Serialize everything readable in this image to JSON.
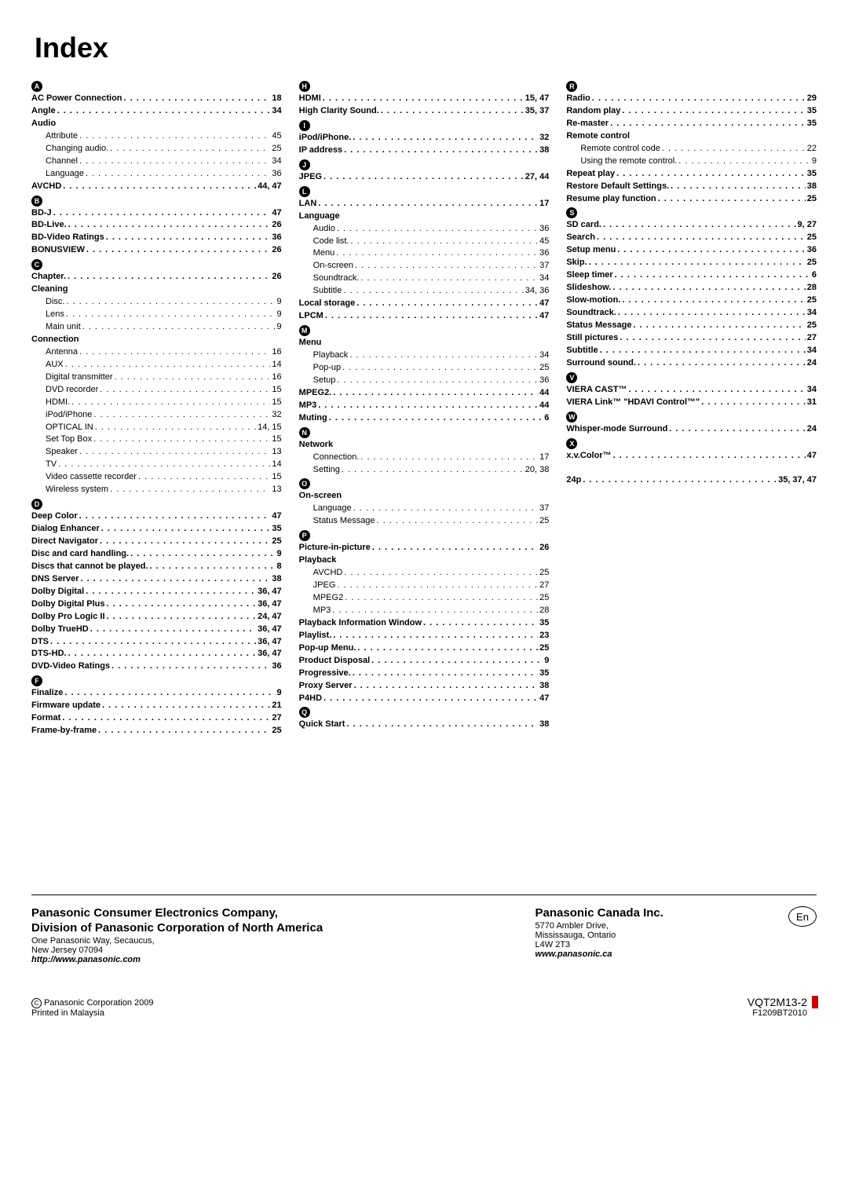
{
  "title": "Index",
  "columns": [
    [
      {
        "type": "letter",
        "v": "A"
      },
      {
        "type": "be",
        "l": "AC Power Connection",
        "p": "18"
      },
      {
        "type": "be",
        "l": "Angle",
        "p": "34"
      },
      {
        "type": "bh",
        "l": "Audio"
      },
      {
        "type": "se",
        "l": "Attribute",
        "p": "45"
      },
      {
        "type": "se",
        "l": "Changing audio.",
        "p": "25"
      },
      {
        "type": "se",
        "l": "Channel",
        "p": "34"
      },
      {
        "type": "se",
        "l": "Language",
        "p": "36"
      },
      {
        "type": "be",
        "l": "AVCHD",
        "p": "44, 47"
      },
      {
        "type": "letter",
        "v": "B"
      },
      {
        "type": "be",
        "l": "BD-J",
        "p": "47"
      },
      {
        "type": "be",
        "l": "BD-Live.",
        "p": "26"
      },
      {
        "type": "be",
        "l": "BD-Video Ratings",
        "p": "36"
      },
      {
        "type": "be",
        "l": "BONUSVIEW",
        "p": "26"
      },
      {
        "type": "letter",
        "v": "C"
      },
      {
        "type": "be",
        "l": "Chapter.",
        "p": "26"
      },
      {
        "type": "bh",
        "l": "Cleaning"
      },
      {
        "type": "se",
        "l": "Disc.",
        "p": "9"
      },
      {
        "type": "se",
        "l": "Lens",
        "p": "9"
      },
      {
        "type": "se",
        "l": "Main unit",
        "p": "9"
      },
      {
        "type": "bh",
        "l": "Connection"
      },
      {
        "type": "se",
        "l": "Antenna",
        "p": "16"
      },
      {
        "type": "se",
        "l": "AUX",
        "p": "14"
      },
      {
        "type": "se",
        "l": "Digital transmitter",
        "p": "16"
      },
      {
        "type": "se",
        "l": "DVD recorder",
        "p": "15"
      },
      {
        "type": "se",
        "l": "HDMI.",
        "p": "15"
      },
      {
        "type": "se",
        "l": "iPod/iPhone",
        "p": "32"
      },
      {
        "type": "se",
        "l": "OPTICAL IN",
        "p": "14, 15"
      },
      {
        "type": "se",
        "l": "Set Top Box",
        "p": "15"
      },
      {
        "type": "se",
        "l": "Speaker",
        "p": "13"
      },
      {
        "type": "se",
        "l": "TV",
        "p": "14"
      },
      {
        "type": "se",
        "l": "Video cassette recorder",
        "p": "15"
      },
      {
        "type": "se",
        "l": "Wireless system",
        "p": "13"
      },
      {
        "type": "letter",
        "v": "D"
      },
      {
        "type": "be",
        "l": "Deep Color",
        "p": "47"
      },
      {
        "type": "be",
        "l": "Dialog Enhancer",
        "p": "35"
      },
      {
        "type": "be",
        "l": "Direct Navigator",
        "p": "25"
      },
      {
        "type": "be",
        "l": "Disc and card handling.",
        "p": "9"
      },
      {
        "type": "be",
        "l": "Discs that cannot be played.",
        "p": "8"
      },
      {
        "type": "be",
        "l": "DNS Server",
        "p": "38"
      },
      {
        "type": "be",
        "l": "Dolby Digital",
        "p": "36, 47"
      },
      {
        "type": "be",
        "l": "Dolby Digital Plus",
        "p": "36, 47"
      },
      {
        "type": "be",
        "l": "Dolby Pro Logic II",
        "p": "24, 47"
      },
      {
        "type": "be",
        "l": "Dolby TrueHD",
        "p": "36, 47"
      },
      {
        "type": "be",
        "l": "DTS",
        "p": "36, 47"
      },
      {
        "type": "be",
        "l": "DTS-HD.",
        "p": "36, 47"
      },
      {
        "type": "be",
        "l": "DVD-Video Ratings",
        "p": "36"
      },
      {
        "type": "letter",
        "v": "F"
      },
      {
        "type": "be",
        "l": "Finalize",
        "p": "9"
      },
      {
        "type": "be",
        "l": "Firmware update",
        "p": "21"
      },
      {
        "type": "be",
        "l": "Format",
        "p": "27"
      },
      {
        "type": "be",
        "l": "Frame-by-frame",
        "p": "25"
      }
    ],
    [
      {
        "type": "letter",
        "v": "H"
      },
      {
        "type": "be",
        "l": "HDMI",
        "p": "15, 47"
      },
      {
        "type": "be",
        "l": "High Clarity Sound.",
        "p": "35, 37"
      },
      {
        "type": "letter",
        "v": "I"
      },
      {
        "type": "be",
        "l": "iPod/iPhone.",
        "p": "32"
      },
      {
        "type": "be",
        "l": "IP address",
        "p": "38"
      },
      {
        "type": "letter",
        "v": "J"
      },
      {
        "type": "be",
        "l": "JPEG",
        "p": "27, 44"
      },
      {
        "type": "letter",
        "v": "L"
      },
      {
        "type": "be",
        "l": "LAN",
        "p": "17"
      },
      {
        "type": "bh",
        "l": "Language"
      },
      {
        "type": "se",
        "l": "Audio",
        "p": "36"
      },
      {
        "type": "se",
        "l": "Code list.",
        "p": "45"
      },
      {
        "type": "se",
        "l": "Menu",
        "p": "36"
      },
      {
        "type": "se",
        "l": "On-screen",
        "p": "37"
      },
      {
        "type": "se",
        "l": "Soundtrack.",
        "p": "34"
      },
      {
        "type": "se",
        "l": "Subtitle",
        "p": "34, 36"
      },
      {
        "type": "be",
        "l": "Local storage",
        "p": "47"
      },
      {
        "type": "be",
        "l": "LPCM",
        "p": "47"
      },
      {
        "type": "letter",
        "v": "M"
      },
      {
        "type": "bh",
        "l": "Menu"
      },
      {
        "type": "se",
        "l": "Playback",
        "p": "34"
      },
      {
        "type": "se",
        "l": "Pop-up",
        "p": "25"
      },
      {
        "type": "se",
        "l": "Setup",
        "p": "36"
      },
      {
        "type": "be",
        "l": "MPEG2.",
        "p": "44"
      },
      {
        "type": "be",
        "l": "MP3",
        "p": "44"
      },
      {
        "type": "be",
        "l": "Muting",
        "p": "6"
      },
      {
        "type": "letter",
        "v": "N"
      },
      {
        "type": "bh",
        "l": "Network"
      },
      {
        "type": "se",
        "l": "Connection.",
        "p": "17"
      },
      {
        "type": "se",
        "l": "Setting",
        "p": "20, 38"
      },
      {
        "type": "letter",
        "v": "O"
      },
      {
        "type": "bh",
        "l": "On-screen"
      },
      {
        "type": "se",
        "l": "Language",
        "p": "37"
      },
      {
        "type": "se",
        "l": "Status Message",
        "p": "25"
      },
      {
        "type": "letter",
        "v": "P"
      },
      {
        "type": "be",
        "l": "Picture-in-picture",
        "p": "26"
      },
      {
        "type": "bh",
        "l": "Playback"
      },
      {
        "type": "se",
        "l": "AVCHD",
        "p": "25"
      },
      {
        "type": "se",
        "l": "JPEG",
        "p": "27"
      },
      {
        "type": "se",
        "l": "MPEG2",
        "p": "25"
      },
      {
        "type": "se",
        "l": "MP3",
        "p": "28"
      },
      {
        "type": "be",
        "l": "Playback Information Window",
        "p": "35"
      },
      {
        "type": "be",
        "l": "Playlist.",
        "p": "23"
      },
      {
        "type": "be",
        "l": "Pop-up Menu.",
        "p": "25"
      },
      {
        "type": "be",
        "l": "Product Disposal",
        "p": "9"
      },
      {
        "type": "be",
        "l": "Progressive.",
        "p": "35"
      },
      {
        "type": "be",
        "l": "Proxy Server",
        "p": "38"
      },
      {
        "type": "be",
        "l": "P4HD",
        "p": "47"
      },
      {
        "type": "letter",
        "v": "Q"
      },
      {
        "type": "be",
        "l": "Quick Start",
        "p": "38"
      }
    ],
    [
      {
        "type": "letter",
        "v": "R"
      },
      {
        "type": "be",
        "l": "Radio",
        "p": "29"
      },
      {
        "type": "be",
        "l": "Random play",
        "p": "35"
      },
      {
        "type": "be",
        "l": "Re-master",
        "p": "35"
      },
      {
        "type": "bh",
        "l": "Remote control"
      },
      {
        "type": "se",
        "l": "Remote control code",
        "p": "22"
      },
      {
        "type": "se",
        "l": "Using the remote control.",
        "p": "9"
      },
      {
        "type": "be",
        "l": "Repeat play",
        "p": "35"
      },
      {
        "type": "be",
        "l": "Restore Default Settings.",
        "p": "38"
      },
      {
        "type": "be",
        "l": "Resume play function",
        "p": "25"
      },
      {
        "type": "letter",
        "v": "S"
      },
      {
        "type": "be",
        "l": "SD card.",
        "p": "9, 27"
      },
      {
        "type": "be",
        "l": "Search",
        "p": "25"
      },
      {
        "type": "be",
        "l": "Setup menu",
        "p": "36"
      },
      {
        "type": "be",
        "l": "Skip.",
        "p": "25"
      },
      {
        "type": "be",
        "l": "Sleep timer",
        "p": "6"
      },
      {
        "type": "be",
        "l": "Slideshow.",
        "p": "28"
      },
      {
        "type": "be",
        "l": "Slow-motion.",
        "p": "25"
      },
      {
        "type": "be",
        "l": "Soundtrack.",
        "p": "34"
      },
      {
        "type": "be",
        "l": "Status Message",
        "p": "25"
      },
      {
        "type": "be",
        "l": "Still pictures",
        "p": "27"
      },
      {
        "type": "be",
        "l": "Subtitle",
        "p": "34"
      },
      {
        "type": "be",
        "l": "Surround sound.",
        "p": "24"
      },
      {
        "type": "letter",
        "v": "V"
      },
      {
        "type": "be",
        "l": "VIERA CAST™",
        "p": "34"
      },
      {
        "type": "be",
        "l": "VIERA Link™ \"HDAVI Control™\"",
        "p": "31"
      },
      {
        "type": "letter",
        "v": "W"
      },
      {
        "type": "be",
        "l": "Whisper-mode Surround",
        "p": "24"
      },
      {
        "type": "letter",
        "v": "X"
      },
      {
        "type": "be",
        "l": "x.v.Color™",
        "p": "47"
      },
      {
        "type": "gap"
      },
      {
        "type": "be",
        "l": "24p",
        "p": "35, 37, 47"
      }
    ]
  ],
  "footer": {
    "b1_h1": "Panasonic Consumer Electronics Company,",
    "b1_h2": "Division of Panasonic Corporation of North America",
    "b1_l1": "One Panasonic Way, Secaucus,",
    "b1_l2": "New Jersey 07094",
    "b1_l3": "http://www.panasonic.com",
    "b2_h1": "Panasonic Canada Inc.",
    "b2_l1": "5770 Ambler Drive,",
    "b2_l2": "Mississauga, Ontario",
    "b2_l3": "L4W 2T3",
    "b2_l4": "www.panasonic.ca",
    "en": "En"
  },
  "bottom": {
    "c": "C",
    "left1": "Panasonic Corporation 2009",
    "left2": "Printed in Malaysia",
    "right1": "VQT2M13-2",
    "right2": "F1209BT2010"
  }
}
